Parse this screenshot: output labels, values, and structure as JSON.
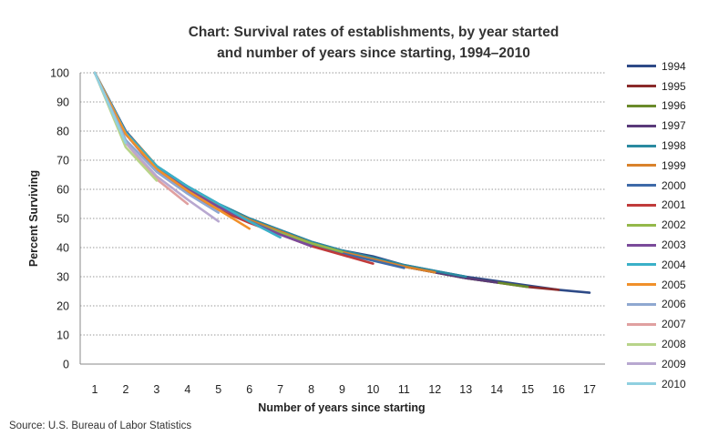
{
  "chart_data": {
    "type": "line",
    "title_line1": "Chart: Survival rates of establishments, by year started",
    "title_line2": "and number of years since starting, 1994–2010",
    "xlabel": "Number of years since  starting",
    "ylabel": "Percent Surviving",
    "xlim": [
      1,
      17
    ],
    "ylim": [
      0,
      100
    ],
    "x_ticks": [
      1,
      2,
      3,
      4,
      5,
      6,
      7,
      8,
      9,
      10,
      11,
      12,
      13,
      14,
      15,
      16,
      17
    ],
    "y_ticks": [
      0,
      10,
      20,
      30,
      40,
      50,
      60,
      70,
      80,
      90,
      100
    ],
    "grid": "horizontal dotted",
    "legend_position": "right",
    "series": [
      {
        "name": "1994",
        "color": "#2e4a87",
        "values": [
          100,
          80,
          68,
          61,
          55,
          50,
          46,
          42,
          39,
          37,
          34,
          32,
          30,
          28.5,
          27,
          25.5,
          24.5
        ]
      },
      {
        "name": "1995",
        "color": "#8b2a2a",
        "values": [
          100,
          79.5,
          67.5,
          60.5,
          54.5,
          49.5,
          45.5,
          41.5,
          38.5,
          36,
          33.5,
          31.5,
          29.5,
          28,
          26.5,
          25.5
        ]
      },
      {
        "name": "1996",
        "color": "#6a8b2a",
        "values": [
          100,
          79,
          67,
          60,
          54,
          49,
          45,
          41.5,
          38.5,
          36,
          33.5,
          31.5,
          29.5,
          28,
          26.5
        ]
      },
      {
        "name": "1997",
        "color": "#5a3a7a",
        "values": [
          100,
          79,
          67,
          60,
          54,
          49,
          45,
          41.5,
          38.5,
          36,
          33.5,
          31.5,
          29.5,
          28
        ]
      },
      {
        "name": "1998",
        "color": "#2a8aa0",
        "values": [
          100,
          80,
          68,
          61,
          55,
          50,
          46,
          42,
          39,
          36.5,
          34,
          32,
          30
        ]
      },
      {
        "name": "1999",
        "color": "#d9822b",
        "values": [
          100,
          80,
          68,
          60.5,
          54.5,
          49.5,
          45.5,
          41.5,
          38.5,
          36,
          33.5,
          31.5
        ]
      },
      {
        "name": "2000",
        "color": "#3e6aa8",
        "values": [
          100,
          80,
          67.5,
          60,
          54,
          49,
          45,
          41,
          38,
          35.5,
          33
        ]
      },
      {
        "name": "2001",
        "color": "#c03a3a",
        "values": [
          100,
          79,
          66.5,
          59,
          53,
          48.5,
          44.5,
          40.5,
          37.5,
          34.5
        ]
      },
      {
        "name": "2002",
        "color": "#94b84a",
        "values": [
          100,
          79,
          67,
          60,
          54,
          49,
          45,
          41.5,
          38.5
        ]
      },
      {
        "name": "2003",
        "color": "#7a4a9a",
        "values": [
          100,
          79,
          67,
          60,
          54,
          49,
          44.5,
          40.5
        ]
      },
      {
        "name": "2004",
        "color": "#3ab0c8",
        "values": [
          100,
          79.5,
          68,
          61,
          55,
          49,
          43.5
        ]
      },
      {
        "name": "2005",
        "color": "#f0902a",
        "values": [
          100,
          79,
          67,
          59.5,
          53,
          46.5
        ]
      },
      {
        "name": "2006",
        "color": "#8fa8d0",
        "values": [
          100,
          77,
          66,
          58.5,
          52
        ]
      },
      {
        "name": "2007",
        "color": "#e0a0a0",
        "values": [
          100,
          76,
          63.5,
          55
        ]
      },
      {
        "name": "2008",
        "color": "#b8d48a",
        "values": [
          100,
          74.5,
          63
        ]
      },
      {
        "name": "2009",
        "color": "#b8a8d0",
        "values": [
          100,
          76,
          64.5,
          56.5,
          49
        ]
      },
      {
        "name": "2010",
        "color": "#90d0e0",
        "values": [
          100,
          76
        ]
      }
    ]
  },
  "source": "Source: U.S. Bureau of Labor Statistics"
}
